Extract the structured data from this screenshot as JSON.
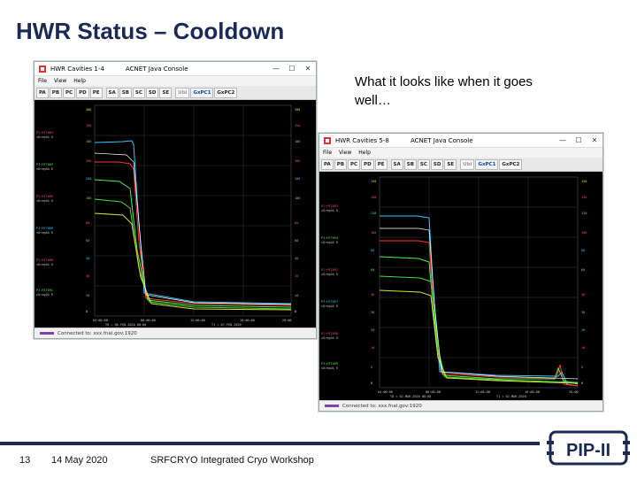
{
  "slide": {
    "title": "HWR Status – Cooldown",
    "caption": "What it looks like when it goes well…"
  },
  "footer": {
    "page_number": "13",
    "date": "14 May 2020",
    "event": "SRFCRYO Integrated Cryo Workshop",
    "logo_text": "PIP-II"
  },
  "window_left": {
    "title": "HWR Cavities 1-4",
    "subtitle": "ACNET Java Console",
    "menu": [
      "File",
      "View",
      "Help"
    ],
    "toolbar": [
      "PA",
      "PB",
      "PC",
      "PD",
      "PE",
      "SA",
      "SB",
      "SC",
      "SD",
      "SE",
      "Ubi",
      "GxPC1",
      "GxPC2"
    ],
    "active_tab": "GxPC1",
    "status": "Connected to: xxx.fnal.gov:1920"
  },
  "window_right": {
    "title": "HWR Cavities 5-8",
    "subtitle": "ACNET Java Console",
    "menu": [
      "File",
      "View",
      "Help"
    ],
    "toolbar": [
      "PA",
      "PB",
      "PC",
      "PD",
      "PE",
      "SA",
      "SB",
      "SC",
      "SD",
      "SE",
      "Ubi",
      "GxPC1",
      "GxPC2"
    ],
    "active_tab": "GxPC1",
    "status": "Connected to: xxx.fnal.gov:1920"
  },
  "colors": {
    "title": "#1a2a55",
    "plot_bg": "#000000",
    "grid": "#4a4a4a",
    "series_cyan": "#33ccff",
    "series_red": "#ff3333",
    "series_green": "#55ee55",
    "series_yellow": "#dddd33",
    "series_white": "#ffffff"
  }
}
